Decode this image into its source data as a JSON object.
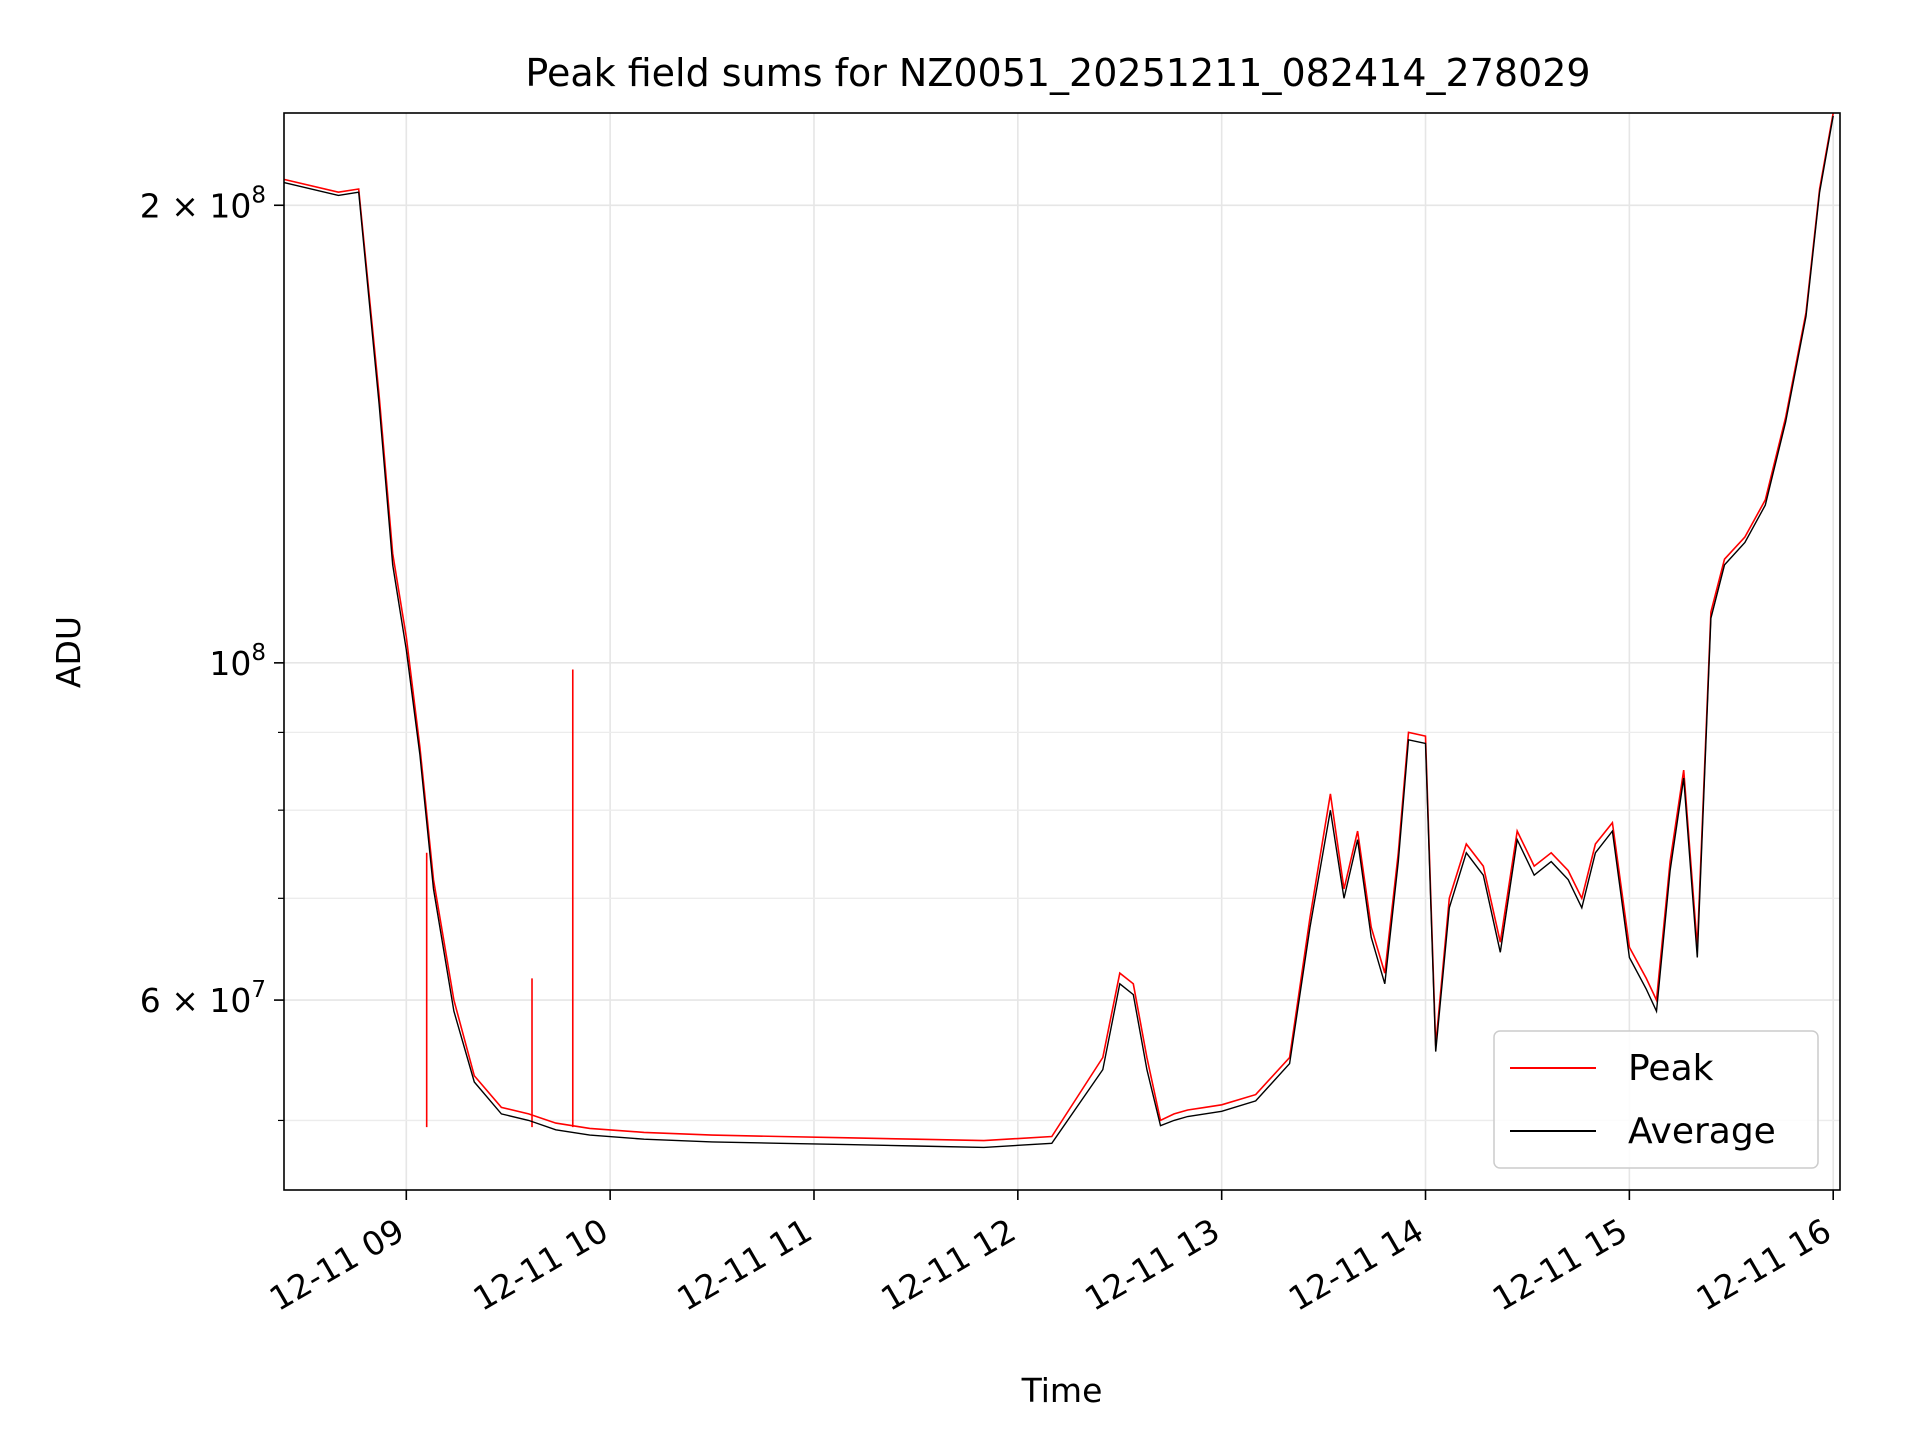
{
  "chart_data": {
    "type": "line",
    "title": "Peak field sums for NZ0051_20251211_082414_278029",
    "xlabel": "Time",
    "ylabel": "ADU",
    "yscale": "log",
    "ylim": [
      45000000,
      230000000
    ],
    "xlim": [
      "12-11 08:24",
      "12-11 16:02"
    ],
    "grid": true,
    "legend_position": "lower-right",
    "x_ticks": [
      "12-11 09",
      "12-11 10",
      "12-11 11",
      "12-11 12",
      "12-11 13",
      "12-11 14",
      "12-11 15",
      "12-11 16"
    ],
    "y_major_ticks": [
      {
        "value": 200000000,
        "label_base": "2 × 10",
        "label_exp": "8"
      },
      {
        "value": 100000000,
        "label_base": "10",
        "label_exp": "8"
      },
      {
        "value": 60000000,
        "label_base": "6 × 10",
        "label_exp": "7"
      }
    ],
    "y_minor_ticks": [
      50000000,
      70000000,
      80000000,
      90000000
    ],
    "series": [
      {
        "name": "Peak",
        "color": "#ff0000",
        "x": [
          "12-11 08:24",
          "12-11 08:40",
          "12-11 08:46",
          "12-11 08:52",
          "12-11 08:56",
          "12-11 09:00",
          "12-11 09:04",
          "12-11 09:08",
          "12-11 09:14",
          "12-11 09:20",
          "12-11 09:28",
          "12-11 09:36",
          "12-11 09:44",
          "12-11 09:54",
          "12-11 10:10",
          "12-11 10:30",
          "12-11 10:50",
          "12-11 11:10",
          "12-11 11:30",
          "12-11 11:50",
          "12-11 12:10",
          "12-11 12:25",
          "12-11 12:30",
          "12-11 12:34",
          "12-11 12:38",
          "12-11 12:42",
          "12-11 12:46",
          "12-11 12:50",
          "12-11 12:55",
          "12-11 13:00",
          "12-11 13:10",
          "12-11 13:20",
          "12-11 13:26",
          "12-11 13:32",
          "12-11 13:36",
          "12-11 13:40",
          "12-11 13:44",
          "12-11 13:48",
          "12-11 13:52",
          "12-11 13:55",
          "12-11 14:00",
          "12-11 14:03",
          "12-11 14:07",
          "12-11 14:12",
          "12-11 14:17",
          "12-11 14:22",
          "12-11 14:27",
          "12-11 14:32",
          "12-11 14:37",
          "12-11 14:42",
          "12-11 14:46",
          "12-11 14:50",
          "12-11 14:55",
          "12-11 15:00",
          "12-11 15:05",
          "12-11 15:08",
          "12-11 15:12",
          "12-11 15:16",
          "12-11 15:20",
          "12-11 15:24",
          "12-11 15:28",
          "12-11 15:34",
          "12-11 15:40",
          "12-11 15:46",
          "12-11 15:52",
          "12-11 15:56",
          "12-11 16:00"
        ],
        "y": [
          208000000,
          204000000,
          205000000,
          150000000,
          118000000,
          104000000,
          88000000,
          72000000,
          60000000,
          53500000,
          51000000,
          50500000,
          49800000,
          49400000,
          49100000,
          48900000,
          48800000,
          48700000,
          48600000,
          48500000,
          48800000,
          55000000,
          62500000,
          61500000,
          55000000,
          50000000,
          50500000,
          50800000,
          51000000,
          51200000,
          52000000,
          55000000,
          68000000,
          82000000,
          71000000,
          77500000,
          67000000,
          62500000,
          75000000,
          90000000,
          89500000,
          56000000,
          70000000,
          76000000,
          73500000,
          65500000,
          77500000,
          73500000,
          75000000,
          73000000,
          70000000,
          76000000,
          78500000,
          65000000,
          62000000,
          60000000,
          74000000,
          85000000,
          65000000,
          108000000,
          117000000,
          121000000,
          128000000,
          145000000,
          170000000,
          205000000,
          230000000
        ],
        "spikes": [
          {
            "x": "12-11 09:37",
            "y": 62000000
          },
          {
            "x": "12-11 09:49",
            "y": 99000000
          },
          {
            "x": "12-11 09:06",
            "y": 75000000
          }
        ]
      },
      {
        "name": "Average",
        "color": "#000000",
        "x": [
          "12-11 08:24",
          "12-11 08:40",
          "12-11 08:46",
          "12-11 08:52",
          "12-11 08:56",
          "12-11 09:00",
          "12-11 09:04",
          "12-11 09:08",
          "12-11 09:14",
          "12-11 09:20",
          "12-11 09:28",
          "12-11 09:36",
          "12-11 09:44",
          "12-11 09:54",
          "12-11 10:10",
          "12-11 10:30",
          "12-11 10:50",
          "12-11 11:10",
          "12-11 11:30",
          "12-11 11:50",
          "12-11 12:10",
          "12-11 12:25",
          "12-11 12:30",
          "12-11 12:34",
          "12-11 12:38",
          "12-11 12:42",
          "12-11 12:46",
          "12-11 12:50",
          "12-11 12:55",
          "12-11 13:00",
          "12-11 13:10",
          "12-11 13:20",
          "12-11 13:26",
          "12-11 13:32",
          "12-11 13:36",
          "12-11 13:40",
          "12-11 13:44",
          "12-11 13:48",
          "12-11 13:52",
          "12-11 13:55",
          "12-11 14:00",
          "12-11 14:03",
          "12-11 14:07",
          "12-11 14:12",
          "12-11 14:17",
          "12-11 14:22",
          "12-11 14:27",
          "12-11 14:32",
          "12-11 14:37",
          "12-11 14:42",
          "12-11 14:46",
          "12-11 14:50",
          "12-11 14:55",
          "12-11 15:00",
          "12-11 15:05",
          "12-11 15:08",
          "12-11 15:12",
          "12-11 15:16",
          "12-11 15:20",
          "12-11 15:24",
          "12-11 15:28",
          "12-11 15:34",
          "12-11 15:40",
          "12-11 15:46",
          "12-11 15:52",
          "12-11 15:56",
          "12-11 16:00"
        ],
        "y": [
          207000000,
          203000000,
          204000000,
          148000000,
          116000000,
          102000000,
          87000000,
          71000000,
          59000000,
          53000000,
          50500000,
          50000000,
          49300000,
          48900000,
          48600000,
          48400000,
          48300000,
          48200000,
          48100000,
          48000000,
          48300000,
          54000000,
          61500000,
          60500000,
          54000000,
          49600000,
          50000000,
          50300000,
          50500000,
          50700000,
          51500000,
          54500000,
          67000000,
          80000000,
          70000000,
          76500000,
          66000000,
          61500000,
          74000000,
          89000000,
          88500000,
          55500000,
          69000000,
          75000000,
          72500000,
          64500000,
          76500000,
          72500000,
          74000000,
          72000000,
          69000000,
          75000000,
          77500000,
          64000000,
          61000000,
          59000000,
          73000000,
          84000000,
          64000000,
          107000000,
          116000000,
          120000000,
          127000000,
          144000000,
          169000000,
          204000000,
          229000000
        ]
      }
    ]
  }
}
